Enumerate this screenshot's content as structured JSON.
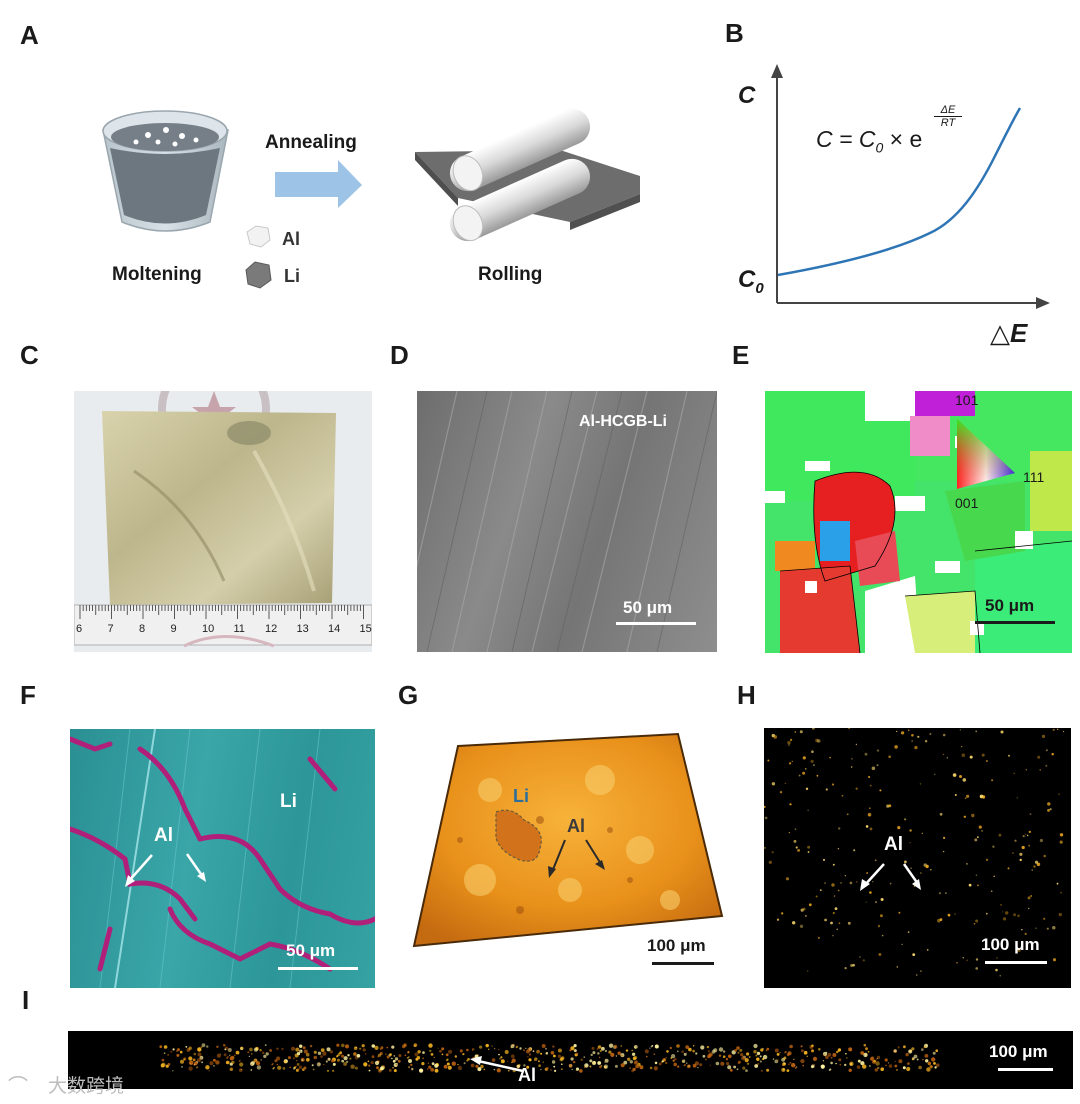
{
  "panels": {
    "A": {
      "label": "A",
      "annealing": "Annealing",
      "moltening": "Moltening",
      "rolling": "Rolling",
      "legend": [
        {
          "name": "Al",
          "color": "#eeeeee"
        },
        {
          "name": "Li",
          "color": "#6a6a6a"
        }
      ]
    },
    "B": {
      "label": "B",
      "y_label": "C",
      "y0_label": "C",
      "y0_sub": "0",
      "x_label": "△",
      "x_label_var": "E",
      "equation_lhs": "C = C",
      "equation_sub": "0",
      "equation_times": "× e",
      "equation_num": "ΔE",
      "equation_den": "RT"
    },
    "C": {
      "label": "C",
      "ruler_ticks": [
        "6",
        "7",
        "8",
        "9",
        "10",
        "11",
        "12",
        "13",
        "14",
        "15"
      ]
    },
    "D": {
      "label": "D",
      "title": "Al-HCGB-Li",
      "scale": "50 μm"
    },
    "E": {
      "label": "E",
      "scale": "50 μm",
      "ipf": {
        "top": "101",
        "right": "111",
        "bottom": "001"
      }
    },
    "F": {
      "label": "F",
      "li": "Li",
      "al": "Al",
      "scale": "50 μm"
    },
    "G": {
      "label": "G",
      "li": "Li",
      "al": "Al",
      "scale": "100 μm"
    },
    "H": {
      "label": "H",
      "al": "Al",
      "scale": "100 μm"
    },
    "I": {
      "label": "I",
      "al": "Al",
      "scale": "100 μm"
    }
  },
  "watermark": "大数跨境",
  "colors": {
    "arrow_blue": "#9dc3e6",
    "curve_blue": "#2e75b6",
    "foil_gold": "#c9c29a",
    "li_teal": "#2aa7a0",
    "al_magenta": "#b0207a",
    "map_orange": "#e8901a"
  }
}
